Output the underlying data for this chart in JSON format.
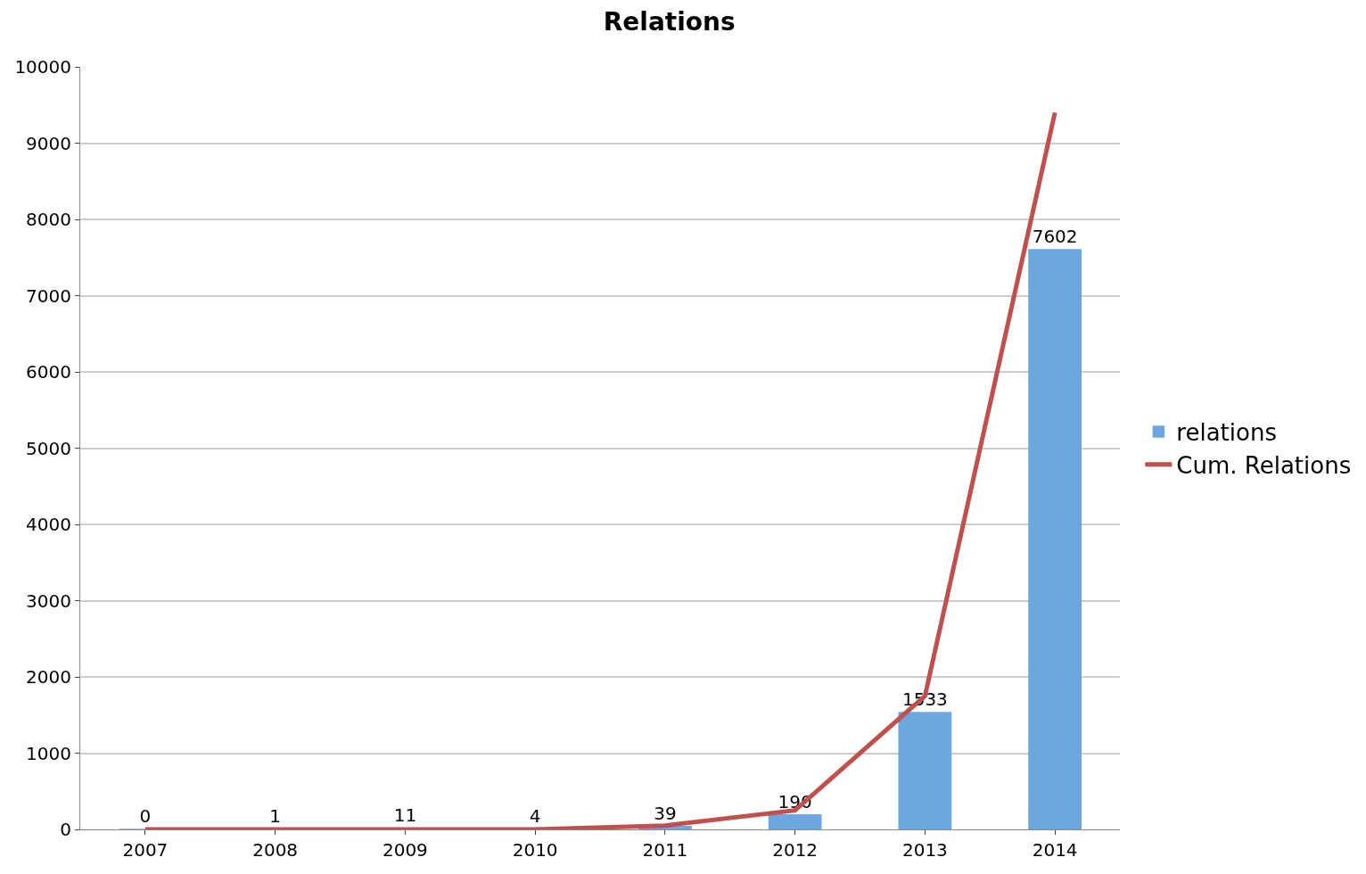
{
  "chart_data": {
    "type": "bar",
    "title": "Relations",
    "categories": [
      "2007",
      "2008",
      "2009",
      "2010",
      "2011",
      "2012",
      "2013",
      "2014"
    ],
    "series": [
      {
        "name": "relations",
        "color": "#6ea6e0",
        "values": [
          0,
          1,
          11,
          4,
          39,
          190,
          1533,
          7602
        ],
        "value_labels": [
          "0",
          "1",
          "11",
          "4",
          "39",
          "190",
          "1533",
          "7602"
        ]
      },
      {
        "name": "Cum. Relations",
        "type": "line",
        "color": "#c0504d",
        "values": [
          0,
          0,
          0,
          0,
          50,
          250,
          1750,
          9400
        ]
      }
    ],
    "ylim": [
      0,
      10000
    ],
    "yticks": [
      0,
      1000,
      2000,
      3000,
      4000,
      5000,
      6000,
      7000,
      8000,
      9000,
      10000
    ],
    "grid": "y",
    "legend": "right",
    "marker": "none",
    "line_style": "solid"
  }
}
